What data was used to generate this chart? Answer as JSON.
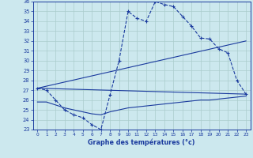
{
  "bg_color": "#cce8ee",
  "line_color": "#1a3a9e",
  "grid_color": "#aacccc",
  "xlabel": "Graphe des températures (°c)",
  "xlabel_color": "#1a3a9e",
  "ylim": [
    23,
    36
  ],
  "xlim": [
    -0.5,
    23.5
  ],
  "yticks": [
    23,
    24,
    25,
    26,
    27,
    28,
    29,
    30,
    31,
    32,
    33,
    34,
    35,
    36
  ],
  "xticks": [
    0,
    1,
    2,
    3,
    4,
    5,
    6,
    7,
    8,
    9,
    10,
    11,
    12,
    13,
    14,
    15,
    16,
    17,
    18,
    19,
    20,
    21,
    22,
    23
  ],
  "series1_x": [
    0,
    1,
    2,
    3,
    4,
    5,
    6,
    7,
    8,
    9,
    10,
    11,
    12,
    13,
    14,
    15,
    16,
    17,
    18,
    19,
    20,
    21,
    22,
    23
  ],
  "series1_y": [
    27.2,
    27.0,
    26.0,
    25.0,
    24.5,
    24.2,
    23.5,
    23.0,
    26.5,
    30.0,
    35.0,
    34.3,
    34.0,
    36.0,
    35.7,
    35.5,
    34.5,
    33.5,
    32.3,
    32.2,
    31.2,
    30.8,
    28.0,
    26.6
  ],
  "series2_x": [
    0,
    23
  ],
  "series2_y": [
    27.2,
    32.0
  ],
  "series3_x": [
    0,
    23
  ],
  "series3_y": [
    27.2,
    26.6
  ],
  "series4_x": [
    0,
    1,
    2,
    3,
    4,
    5,
    6,
    7,
    8,
    9,
    10,
    11,
    12,
    13,
    14,
    15,
    16,
    17,
    18,
    19,
    20,
    21,
    22,
    23
  ],
  "series4_y": [
    25.8,
    25.8,
    25.5,
    25.2,
    25.0,
    24.8,
    24.6,
    24.5,
    24.8,
    25.0,
    25.2,
    25.3,
    25.4,
    25.5,
    25.6,
    25.7,
    25.8,
    25.9,
    26.0,
    26.0,
    26.1,
    26.2,
    26.3,
    26.4
  ]
}
